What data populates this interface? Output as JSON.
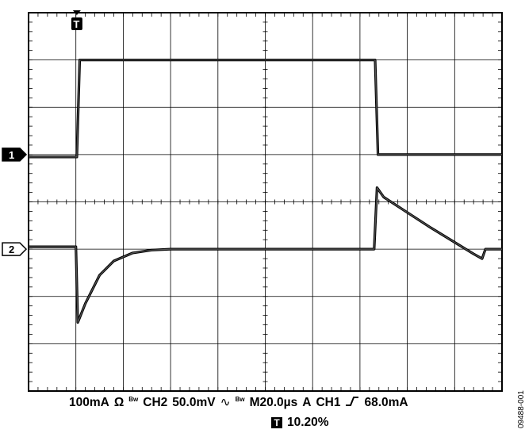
{
  "chart_data": {
    "type": "line",
    "grid": {
      "h_divisions": 10,
      "v_divisions": 8
    },
    "series": [
      {
        "channel_marker": "1",
        "values_div": [
          [
            0,
            -0.05
          ],
          [
            1.02,
            -0.05
          ],
          [
            1.08,
            2.0
          ],
          [
            7.32,
            2.0
          ],
          [
            7.38,
            0.0
          ],
          [
            10,
            0.0
          ]
        ]
      },
      {
        "channel_marker": "2",
        "values_div": [
          [
            0,
            0.05
          ],
          [
            1.0,
            0.05
          ],
          [
            1.04,
            -1.55
          ],
          [
            1.2,
            -1.15
          ],
          [
            1.5,
            -0.55
          ],
          [
            1.8,
            -0.25
          ],
          [
            2.2,
            -0.08
          ],
          [
            2.6,
            -0.02
          ],
          [
            3.0,
            0
          ],
          [
            7.3,
            0
          ],
          [
            7.36,
            1.3
          ],
          [
            7.5,
            1.1
          ],
          [
            8.5,
            0.45
          ],
          [
            9.4,
            -0.1
          ],
          [
            9.58,
            -0.2
          ],
          [
            9.65,
            0
          ],
          [
            10,
            0
          ]
        ]
      }
    ],
    "trigger_marker": "T"
  },
  "status": {
    "ch1_scale": "100mA",
    "ch1_coupling": "Ω",
    "ch1_bw": "Bw",
    "ch2_label": "CH2",
    "ch2_scale": "50.0mV",
    "ch2_bw": "Bw",
    "timebase": "M20.0µs",
    "trigger_mode": "A",
    "trigger_source": "CH1",
    "trigger_slope": "rising-edge-icon",
    "trigger_level": "68.0mA",
    "trigger_position_icon": "T",
    "trigger_position": "10.20%"
  },
  "figure_id": "09488-001"
}
